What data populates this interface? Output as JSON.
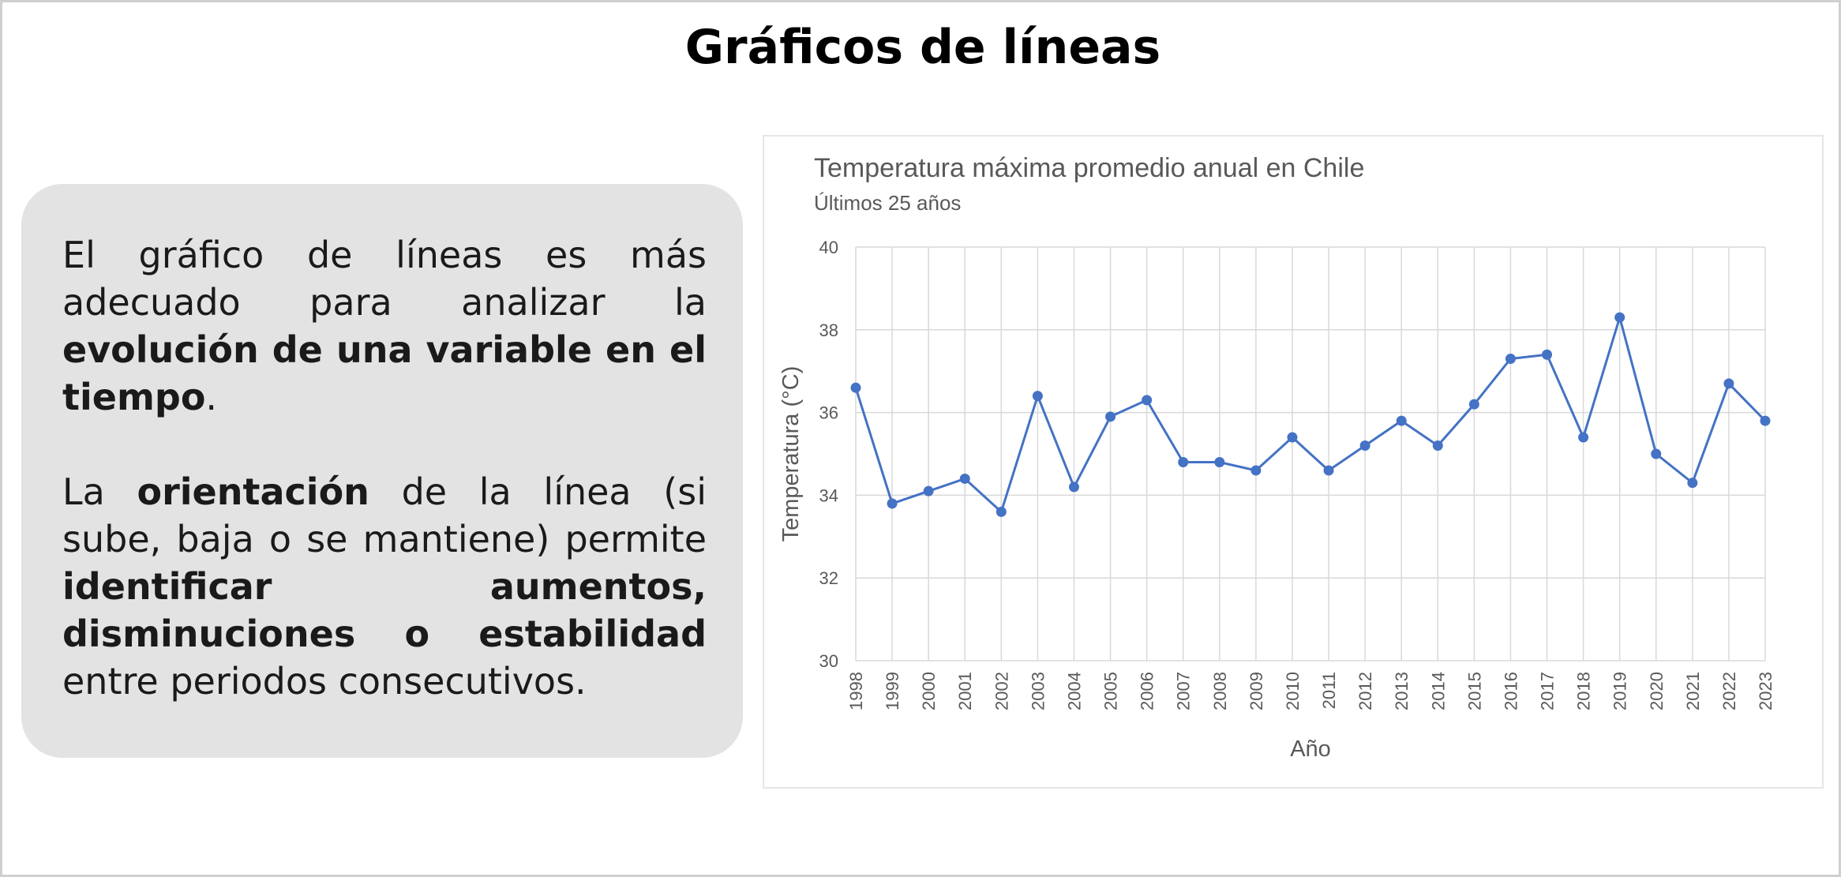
{
  "slide": {
    "title": "Gráficos de líneas",
    "paragraph1": [
      {
        "text": "El gráfico de líneas es más adecuado para analizar la ",
        "bold": false
      },
      {
        "text": "evolución de una variable en el tiempo",
        "bold": true
      },
      {
        "text": ".",
        "bold": false
      }
    ],
    "paragraph2": [
      {
        "text": "La ",
        "bold": false
      },
      {
        "text": "orientación",
        "bold": true
      },
      {
        "text": " de la línea (si sube, baja o se mantiene) permite ",
        "bold": false
      },
      {
        "text": "identificar aumentos, disminuciones o estabilidad",
        "bold": true
      },
      {
        "text": " entre periodos consecutivos.",
        "bold": false
      }
    ]
  },
  "colors": {
    "line": "#4472c4",
    "grid": "#d9d9d9",
    "text": "#595959",
    "panel": "#e3e3e3"
  },
  "chart_data": {
    "type": "line",
    "title": "Temperatura máxima promedio anual en Chile",
    "subtitle": "Últimos 25 años",
    "xlabel": "Año",
    "ylabel": "Temperatura (°C)",
    "ylim": [
      30,
      40
    ],
    "yticks": [
      30,
      32,
      34,
      36,
      38,
      40
    ],
    "grid": true,
    "categories": [
      "1998",
      "1999",
      "2000",
      "2001",
      "2002",
      "2003",
      "2004",
      "2005",
      "2006",
      "2007",
      "2008",
      "2009",
      "2010",
      "2011",
      "2012",
      "2013",
      "2014",
      "2015",
      "2016",
      "2017",
      "2018",
      "2019",
      "2020",
      "2021",
      "2022",
      "2023"
    ],
    "series": [
      {
        "name": "Temperatura",
        "values": [
          36.6,
          33.8,
          34.1,
          34.4,
          33.6,
          36.4,
          34.2,
          35.9,
          36.3,
          34.8,
          34.8,
          34.6,
          35.4,
          34.6,
          35.2,
          35.8,
          35.2,
          36.2,
          37.3,
          37.4,
          35.4,
          38.3,
          35.0,
          34.3,
          36.7,
          35.8
        ]
      }
    ]
  }
}
